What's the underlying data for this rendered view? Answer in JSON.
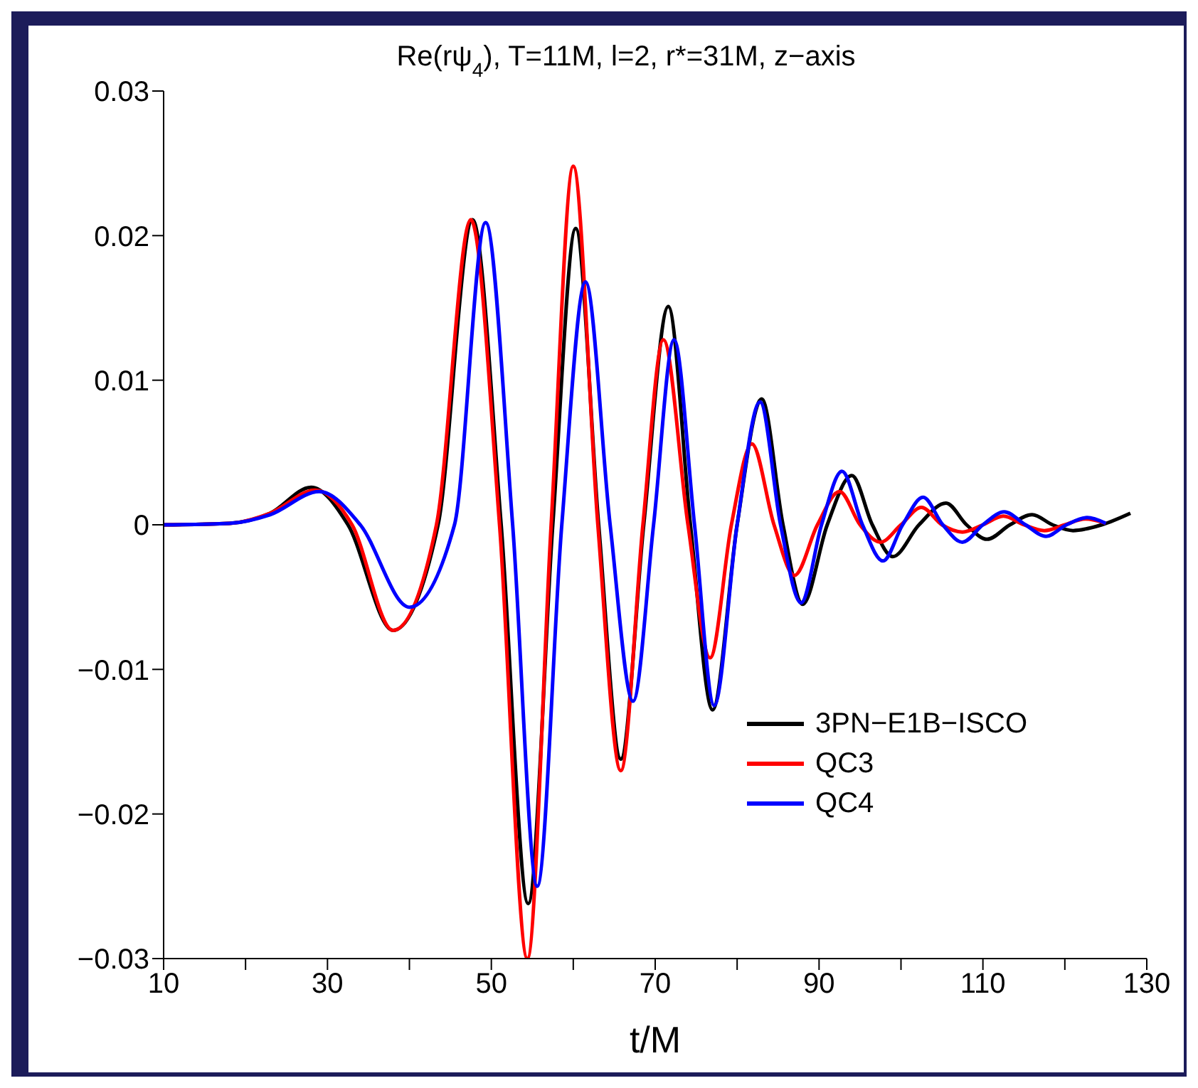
{
  "chart_data": {
    "type": "line",
    "title": "Re(rψ$_{4}$), T=11M, l=2, r*=31M, z−axis",
    "xlabel": "t/M",
    "xlim": [
      10,
      130
    ],
    "xticks": [
      10,
      {
        "value": 20,
        "label": null
      },
      30,
      {
        "value": 40,
        "label": null
      },
      50,
      {
        "value": 60,
        "label": null
      },
      70,
      {
        "value": 80,
        "label": null
      },
      90,
      {
        "value": 100,
        "label": null
      },
      110,
      {
        "value": 120,
        "label": null
      },
      130
    ],
    "ylim": [
      -0.03,
      0.03
    ],
    "yticks": [
      -0.03,
      -0.02,
      -0.01,
      0,
      0.01,
      0.02,
      0.03
    ],
    "grid": false,
    "legend": "bottom right",
    "marker": "none",
    "line_style": "solid",
    "series": [
      {
        "name": "3PN−E1B−ISCO",
        "color": "#000000",
        "x": [
          10,
          18,
          23,
          28,
          32.5,
          38,
          43.5,
          47.7,
          51.2,
          54.5,
          57.5,
          60.3,
          63.1,
          65.8,
          68.6,
          71.6,
          74.3,
          77,
          80,
          83,
          85.6,
          88,
          91,
          94,
          96.5,
          99,
          102.2,
          105.5,
          108,
          110.5,
          113.3,
          116,
          118.5,
          121,
          124.5,
          128
        ],
        "values": [
          0,
          0.0001,
          0.0008,
          0.0026,
          0,
          -0.0073,
          0,
          0.0211,
          0,
          -0.0262,
          0,
          0.0205,
          0,
          -0.0162,
          0,
          0.0151,
          0,
          -0.0128,
          0,
          0.0087,
          0,
          -0.0055,
          0,
          0.0034,
          0,
          -0.0022,
          0,
          0.0015,
          0,
          -0.001,
          0,
          0.0007,
          0,
          -0.0004,
          0,
          0.0008
        ]
      },
      {
        "name": "QC3",
        "color": "#ff0000",
        "x": [
          10,
          18,
          23,
          28.5,
          33,
          38,
          43.3,
          47.5,
          51,
          54.4,
          57.3,
          60,
          63,
          65.8,
          68.5,
          71,
          74,
          76.7,
          79.3,
          81.8,
          84.5,
          87,
          89.8,
          92.5,
          95,
          97.5,
          100,
          102.5,
          105,
          107.5,
          110,
          112.5,
          115,
          117.5,
          120,
          122.5,
          125
        ],
        "values": [
          0,
          0.0001,
          0.0008,
          0.0024,
          0,
          -0.0073,
          0,
          0.0211,
          0,
          -0.03,
          0,
          0.0248,
          0,
          -0.017,
          0,
          0.0128,
          0,
          -0.0092,
          0,
          0.0056,
          0,
          -0.0035,
          0,
          0.0023,
          0,
          -0.0012,
          0,
          0.0012,
          0,
          -0.0005,
          0,
          0.0006,
          0,
          -0.0004,
          0,
          0.0004,
          0.0001
        ]
      },
      {
        "name": "QC4",
        "color": "#0000ff",
        "x": [
          10,
          18,
          23,
          29,
          34,
          40,
          45.5,
          49.3,
          52.6,
          55.6,
          58.6,
          61.5,
          64.5,
          67.3,
          69.8,
          72.3,
          74.8,
          77.2,
          80,
          82.8,
          85.3,
          87.8,
          90.3,
          92.8,
          95.3,
          97.8,
          100.2,
          102.7,
          105.1,
          107.5,
          110,
          112.6,
          115.2,
          117.7,
          120.2,
          122.7,
          125
        ],
        "values": [
          0,
          0.0001,
          0.0007,
          0.0023,
          0,
          -0.0057,
          0,
          0.0209,
          0,
          -0.025,
          0,
          0.0168,
          0,
          -0.0122,
          0,
          0.0128,
          0,
          -0.0125,
          0,
          0.0085,
          0,
          -0.0054,
          0,
          0.0037,
          0,
          -0.0025,
          0,
          0.0019,
          0,
          -0.0012,
          0,
          0.0009,
          0,
          -0.0008,
          0,
          0.0005,
          0.0001
        ]
      }
    ]
  }
}
